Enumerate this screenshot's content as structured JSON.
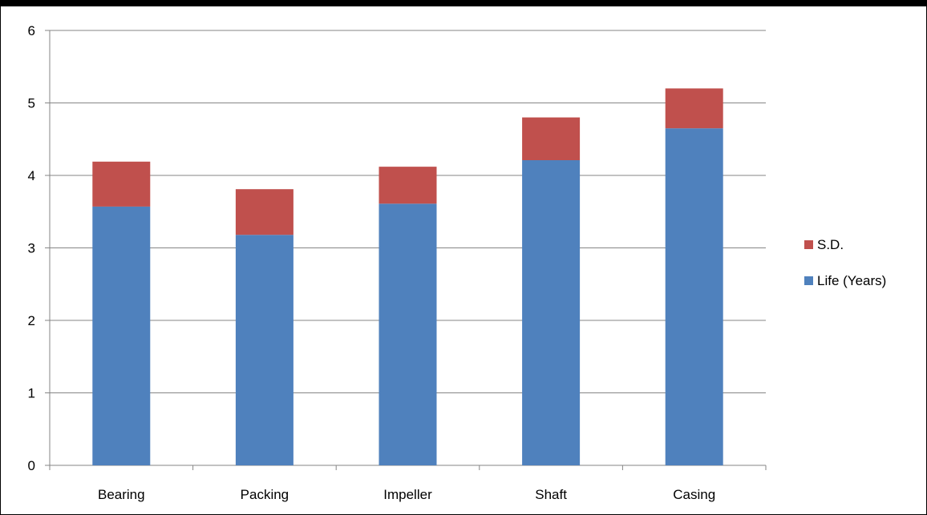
{
  "chart_data": {
    "type": "bar",
    "stacked": true,
    "categories": [
      "Bearing",
      "Packing",
      "Impeller",
      "Shaft",
      "Casing"
    ],
    "series": [
      {
        "name": "Life (Years)",
        "color": "#4F81BD",
        "values": [
          3.57,
          3.18,
          3.61,
          4.21,
          4.65
        ]
      },
      {
        "name": "S.D.",
        "color": "#C0504D",
        "values": [
          0.62,
          0.63,
          0.51,
          0.59,
          0.55
        ]
      }
    ],
    "ylim": [
      0,
      6
    ],
    "yticks": [
      "0",
      "1",
      "2",
      "3",
      "4",
      "5",
      "6"
    ],
    "grid": true,
    "legend": "right",
    "legend_order": [
      "S.D.",
      "Life (Years)"
    ]
  }
}
